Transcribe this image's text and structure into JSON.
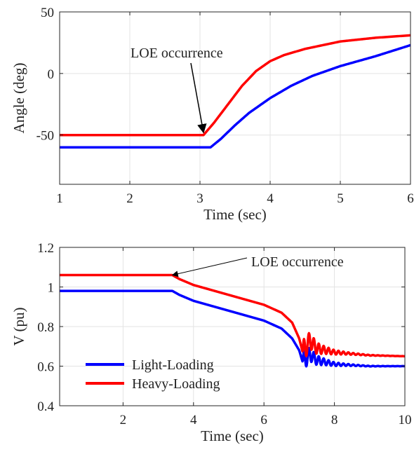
{
  "chart_data": [
    {
      "type": "line",
      "xlabel": "Time (sec)",
      "ylabel": "Angle (deg)",
      "xlim": [
        1,
        6
      ],
      "ylim": [
        -90,
        50
      ],
      "xticks": [
        1,
        2,
        3,
        4,
        5,
        6
      ],
      "yticks": [
        -50,
        0,
        50
      ],
      "grid": true,
      "annotations": [
        {
          "text": "LOE occurrence",
          "x": 3.05,
          "y": -48
        }
      ],
      "series": [
        {
          "color": "#ff0000",
          "x": [
            1,
            3.05,
            3.2,
            3.4,
            3.6,
            3.8,
            4.0,
            4.2,
            4.5,
            5.0,
            5.5,
            6.0
          ],
          "y": [
            -50,
            -50,
            -40,
            -25,
            -10,
            2,
            10,
            15,
            20,
            26,
            29,
            31
          ]
        },
        {
          "color": "#0000ff",
          "x": [
            1,
            3.15,
            3.3,
            3.5,
            3.7,
            4.0,
            4.3,
            4.6,
            5.0,
            5.5,
            6.0
          ],
          "y": [
            -60,
            -60,
            -53,
            -42,
            -32,
            -20,
            -10,
            -2,
            6,
            14,
            23
          ]
        }
      ]
    },
    {
      "type": "line",
      "xlabel": "Time (sec)",
      "ylabel": "V (pu)",
      "xlim": [
        0.2,
        10
      ],
      "ylim": [
        0.4,
        1.2
      ],
      "xticks": [
        2,
        4,
        6,
        8,
        10
      ],
      "yticks": [
        0.4,
        0.6,
        0.8,
        1,
        1.2
      ],
      "grid": true,
      "legend": "lower-left",
      "annotations": [
        {
          "text": "LOE occurrence",
          "x": 3.4,
          "y": 1.06
        }
      ],
      "series": [
        {
          "name": "Light-Loading",
          "color": "#0000ff",
          "x": [
            0.2,
            3.4,
            3.6,
            4.0,
            5.0,
            6.0,
            6.5,
            6.8,
            7.0,
            7.1,
            7.3,
            7.5,
            8.0,
            9.0,
            10.0
          ],
          "y": [
            0.98,
            0.98,
            0.96,
            0.93,
            0.88,
            0.83,
            0.79,
            0.74,
            0.68,
            0.62,
            0.66,
            0.63,
            0.61,
            0.6,
            0.6
          ],
          "oscillation": {
            "start": 7.1,
            "amplitude": 0.05,
            "decay": 0.55,
            "period": 0.14
          }
        },
        {
          "name": "Heavy-Loading",
          "color": "#ff0000",
          "x": [
            0.2,
            3.4,
            3.6,
            4.0,
            5.0,
            6.0,
            6.5,
            6.8,
            7.0,
            7.1,
            7.3,
            7.5,
            8.0,
            9.0,
            10.0
          ],
          "y": [
            1.06,
            1.06,
            1.04,
            1.01,
            0.96,
            0.91,
            0.87,
            0.82,
            0.74,
            0.67,
            0.73,
            0.69,
            0.67,
            0.655,
            0.65
          ],
          "oscillation": {
            "start": 7.1,
            "amplitude": 0.06,
            "decay": 0.55,
            "period": 0.14
          }
        }
      ]
    }
  ]
}
